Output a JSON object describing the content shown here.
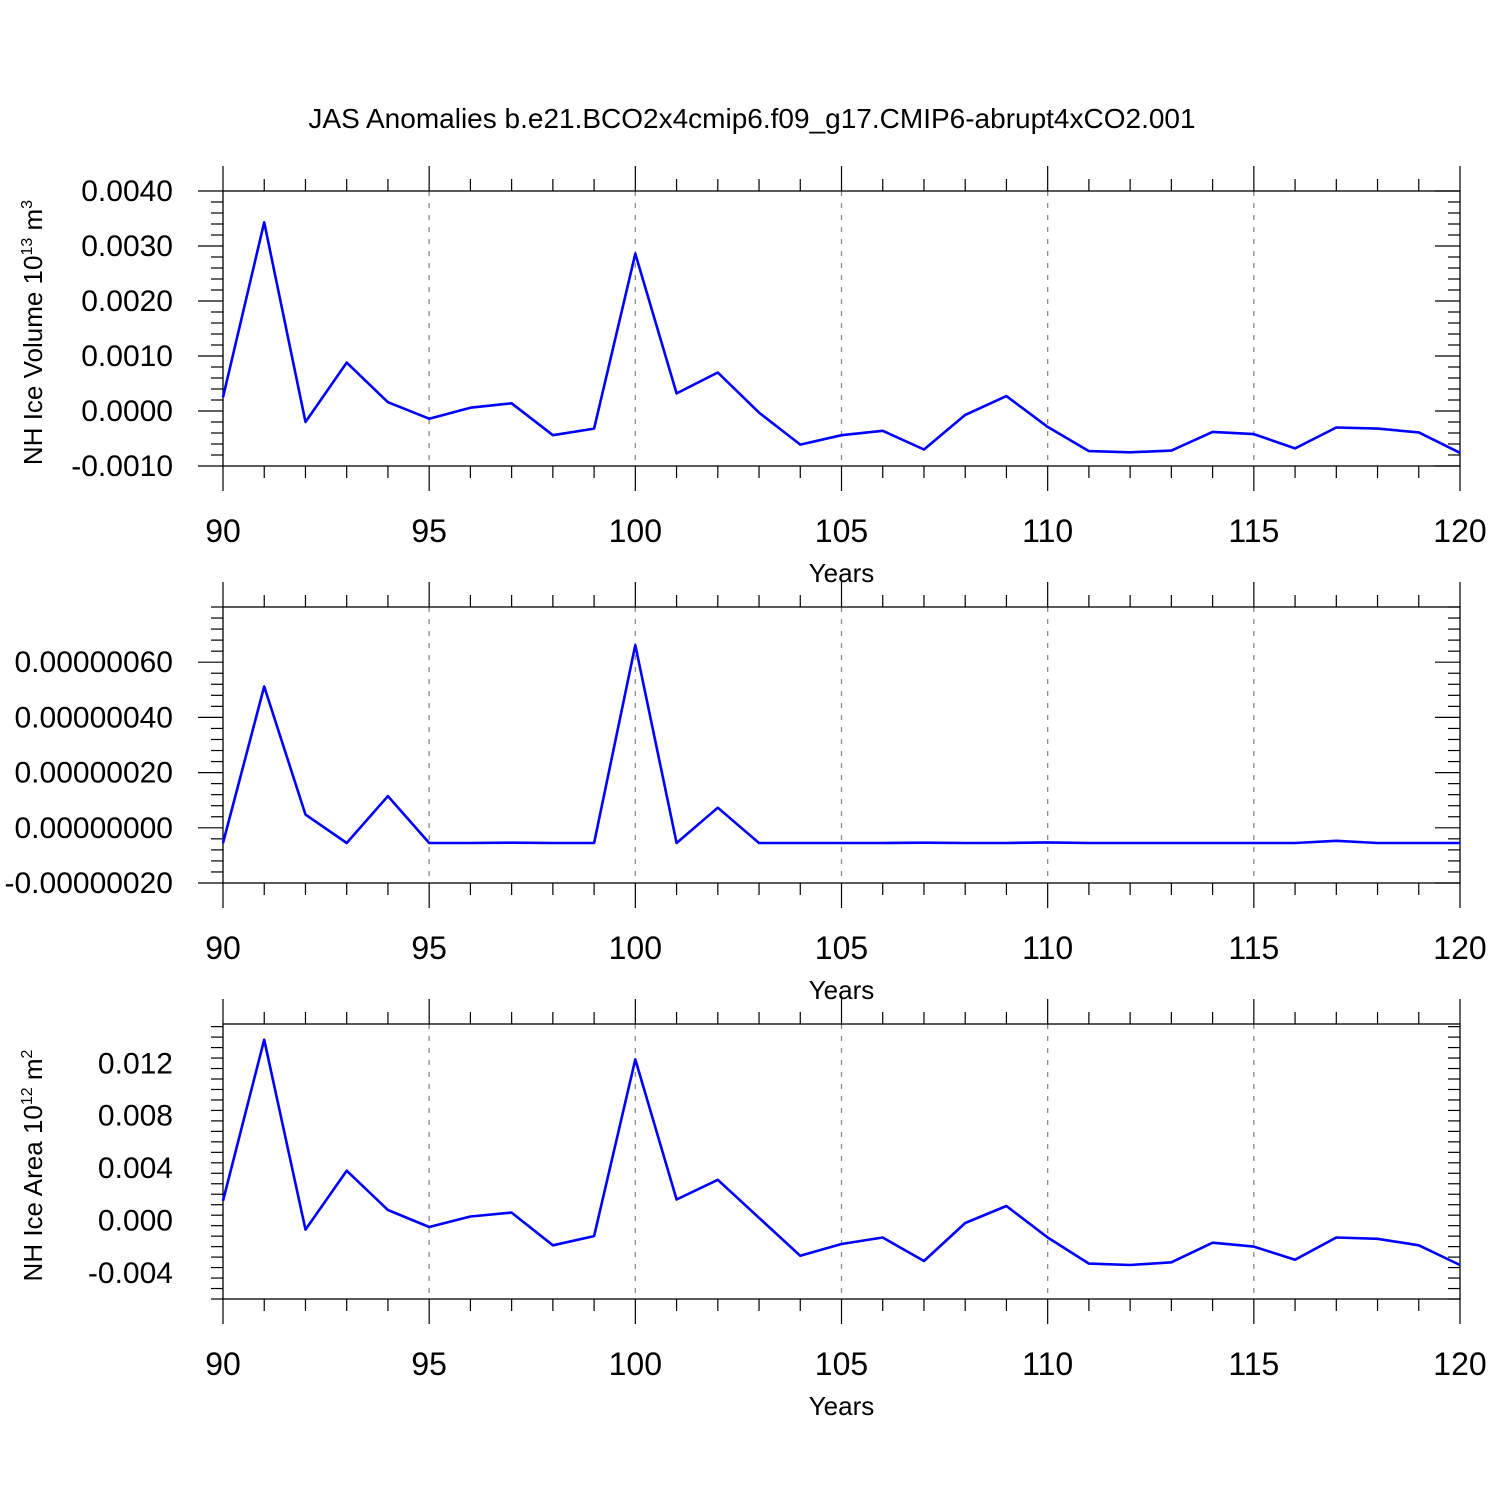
{
  "title": "JAS Anomalies b.e21.BCO2x4cmip6.f09_g17.CMIP6-abrupt4xCO2.001",
  "series_color": "#0000ff",
  "grid_color": "#8a8a8a",
  "chart_data": [
    {
      "type": "line",
      "ylabel_main": "NH Ice Volume 10",
      "ylabel_exp": "13",
      "ylabel_unit": "m",
      "ylabel_unit_exp": "3",
      "xlabel": "Years",
      "xlim": [
        90,
        120
      ],
      "ylim": [
        -0.001,
        0.004
      ],
      "xticks": [
        90,
        95,
        100,
        105,
        110,
        115,
        120
      ],
      "yticks": [
        -0.001,
        0.0,
        0.001,
        0.002,
        0.003,
        0.004
      ],
      "ytick_labels": [
        "-0.0010",
        "0.0000",
        "0.0010",
        "0.0020",
        "0.0030",
        "0.0040"
      ],
      "grid_x": [
        95,
        100,
        105,
        110,
        115
      ],
      "x": [
        90,
        91,
        92,
        93,
        94,
        95,
        96,
        97,
        98,
        99,
        100,
        101,
        102,
        103,
        104,
        105,
        106,
        107,
        108,
        109,
        110,
        111,
        112,
        113,
        114,
        115,
        116,
        117,
        118,
        119,
        120
      ],
      "values": [
        0.00025,
        0.00343,
        -0.0002,
        0.00088,
        0.00016,
        -0.00014,
        6e-05,
        0.00014,
        -0.00044,
        -0.00032,
        0.00286,
        0.00032,
        0.0007,
        -3e-05,
        -0.00061,
        -0.00044,
        -0.00036,
        -0.0007,
        -7e-05,
        0.00027,
        -0.00029,
        -0.00073,
        -0.00075,
        -0.00072,
        -0.00038,
        -0.00042,
        -0.00068,
        -0.0003,
        -0.00032,
        -0.00039,
        -0.00076
      ]
    },
    {
      "type": "line",
      "xlabel": "Years",
      "xlim": [
        90,
        120
      ],
      "ylim": [
        -2e-07,
        8e-07
      ],
      "xticks": [
        90,
        95,
        100,
        105,
        110,
        115,
        120
      ],
      "yticks": [
        -2e-07,
        0.0,
        2e-07,
        4e-07,
        6e-07
      ],
      "ytick_labels": [
        "-0.00000020",
        "0.00000000",
        "0.00000020",
        "0.00000040",
        "0.00000060"
      ],
      "grid_x": [
        95,
        100,
        105,
        110,
        115
      ],
      "x": [
        90,
        91,
        92,
        93,
        94,
        95,
        96,
        97,
        98,
        99,
        100,
        101,
        102,
        103,
        104,
        105,
        106,
        107,
        108,
        109,
        110,
        111,
        112,
        113,
        114,
        115,
        116,
        117,
        118,
        119,
        120
      ],
      "values": [
        -5.5e-08,
        5.12e-07,
        4.8e-08,
        -5.5e-08,
        1.15e-07,
        -5.5e-08,
        -5.5e-08,
        -5.4e-08,
        -5.5e-08,
        -5.5e-08,
        6.62e-07,
        -5.5e-08,
        7.3e-08,
        -5.5e-08,
        -5.5e-08,
        -5.5e-08,
        -5.5e-08,
        -5.4e-08,
        -5.5e-08,
        -5.5e-08,
        -5.3e-08,
        -5.5e-08,
        -5.5e-08,
        -5.5e-08,
        -5.5e-08,
        -5.5e-08,
        -5.5e-08,
        -4.7e-08,
        -5.5e-08,
        -5.5e-08,
        -5.5e-08
      ]
    },
    {
      "type": "line",
      "ylabel_main": "NH Ice Area 10",
      "ylabel_exp": "12",
      "ylabel_unit": "m",
      "ylabel_unit_exp": "2",
      "xlabel": "Years",
      "xlim": [
        90,
        120
      ],
      "ylim": [
        -0.006,
        0.015
      ],
      "xticks": [
        90,
        95,
        100,
        105,
        110,
        115,
        120
      ],
      "yticks": [
        -0.004,
        0.0,
        0.004,
        0.008,
        0.012
      ],
      "ytick_labels": [
        "-0.004",
        "0.000",
        "0.004",
        "0.008",
        "0.012"
      ],
      "grid_x": [
        95,
        100,
        105,
        110,
        115
      ],
      "x": [
        90,
        91,
        92,
        93,
        94,
        95,
        96,
        97,
        98,
        99,
        100,
        101,
        102,
        103,
        104,
        105,
        106,
        107,
        108,
        109,
        110,
        111,
        112,
        113,
        114,
        115,
        116,
        117,
        118,
        119,
        120
      ],
      "values": [
        0.0015,
        0.0138,
        -0.0007,
        0.0038,
        0.0008,
        -0.0005,
        0.0003,
        0.0006,
        -0.0019,
        -0.0012,
        0.0123,
        0.0016,
        0.0031,
        0.0002,
        -0.0027,
        -0.0018,
        -0.0013,
        -0.0031,
        -0.0002,
        0.0011,
        -0.0013,
        -0.0033,
        -0.0034,
        -0.0032,
        -0.0017,
        -0.002,
        -0.003,
        -0.0013,
        -0.0014,
        -0.0019,
        -0.0034
      ]
    }
  ]
}
